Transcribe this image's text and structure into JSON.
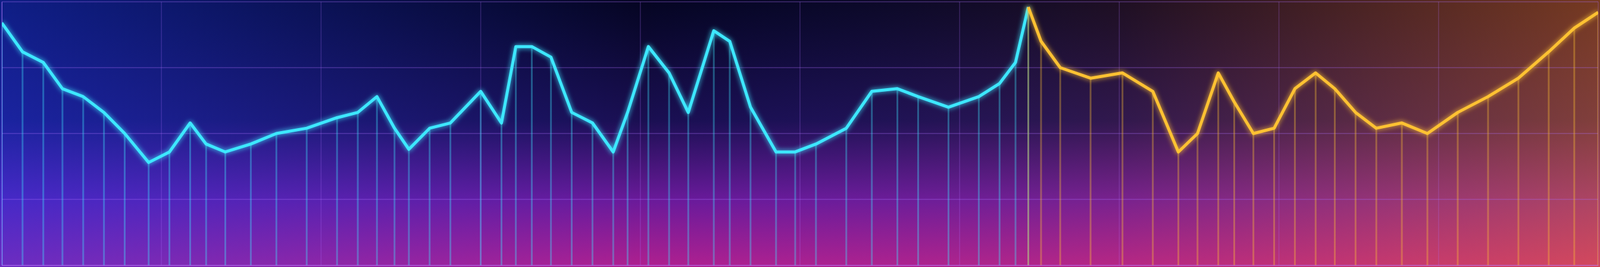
{
  "chart_data": {
    "type": "line",
    "x": [
      0,
      1.3,
      2.6,
      3.8,
      5.1,
      6.4,
      7.7,
      9.2,
      10.5,
      11.8,
      12.8,
      14.0,
      15.6,
      17.2,
      19.1,
      21.0,
      22.3,
      23.5,
      24.6,
      25.5,
      26.8,
      28.1,
      30.0,
      31.3,
      32.2,
      33.2,
      34.4,
      35.7,
      37.0,
      38.3,
      39.2,
      40.5,
      41.8,
      43.0,
      44.6,
      45.6,
      46.9,
      48.5,
      49.7,
      51.0,
      52.9,
      54.5,
      56.1,
      57.4,
      59.3,
      61.2,
      62.5,
      63.5,
      64.3,
      65.1,
      66.3,
      68.2,
      70.2,
      72.1,
      73.7,
      74.9,
      76.2,
      77.2,
      78.4,
      79.7,
      81.0,
      82.3,
      83.5,
      84.8,
      86.1,
      87.7,
      89.3,
      91.2,
      93.1,
      95.0,
      96.9,
      98.5,
      100
    ],
    "series": [
      {
        "color": "#3ee8ff",
        "values": [
          92,
          81,
          77,
          67,
          64,
          58,
          50,
          39,
          43,
          54,
          46,
          43,
          46,
          50,
          52,
          56,
          58,
          64,
          52,
          44,
          52,
          54,
          66,
          54,
          83,
          83,
          79,
          58,
          54,
          43,
          58,
          83,
          73,
          58,
          89,
          85,
          60,
          43,
          43,
          46,
          52,
          66,
          67,
          64,
          60,
          64,
          69,
          77,
          98,
          null,
          null,
          null,
          null,
          null,
          null,
          null,
          null,
          null,
          null,
          null,
          null,
          null,
          null,
          null,
          null,
          null,
          null,
          null,
          null,
          null,
          null,
          null,
          null
        ]
      },
      {
        "color": "#ffc233",
        "values": [
          null,
          null,
          null,
          null,
          null,
          null,
          null,
          null,
          null,
          null,
          null,
          null,
          null,
          null,
          null,
          null,
          null,
          null,
          null,
          null,
          null,
          null,
          null,
          null,
          null,
          null,
          null,
          null,
          null,
          null,
          null,
          null,
          null,
          null,
          null,
          null,
          null,
          null,
          null,
          null,
          null,
          null,
          null,
          null,
          null,
          null,
          null,
          null,
          98,
          85,
          75,
          71,
          73,
          66,
          43,
          50,
          73,
          62,
          50,
          52,
          67,
          73,
          67,
          58,
          52,
          54,
          50,
          58,
          64,
          71,
          81,
          90,
          96
        ]
      }
    ],
    "xlim": [
      0,
      100
    ],
    "xticks": [
      0,
      10,
      20,
      30,
      40,
      50,
      60,
      70,
      80,
      90,
      100
    ],
    "ylim": [
      0,
      100
    ],
    "yticks": [
      0,
      25,
      50,
      75,
      100
    ],
    "grid": true,
    "tick_labels": false
  }
}
